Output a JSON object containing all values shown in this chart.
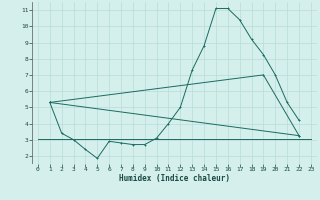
{
  "xlabel": "Humidex (Indice chaleur)",
  "bg_color": "#d4efec",
  "grid_color": "#b8ddd9",
  "line_color": "#1a6b60",
  "xlim": [
    -0.5,
    23.5
  ],
  "ylim": [
    1.5,
    11.5
  ],
  "xticks": [
    0,
    1,
    2,
    3,
    4,
    5,
    6,
    7,
    8,
    9,
    10,
    11,
    12,
    13,
    14,
    15,
    16,
    17,
    18,
    19,
    20,
    21,
    22,
    23
  ],
  "yticks": [
    2,
    3,
    4,
    5,
    6,
    7,
    8,
    9,
    10,
    11
  ],
  "line1_x": [
    1,
    2,
    3,
    4,
    5,
    6,
    7,
    8,
    9,
    10,
    11,
    12,
    13,
    14,
    15,
    16,
    17,
    18,
    19,
    20,
    21,
    22
  ],
  "line1_y": [
    5.3,
    3.4,
    3.0,
    2.4,
    1.85,
    2.9,
    2.8,
    2.7,
    2.7,
    3.1,
    4.0,
    5.0,
    7.3,
    8.8,
    11.1,
    11.1,
    10.4,
    9.2,
    8.25,
    7.0,
    5.3,
    4.2
  ],
  "line2_x": [
    1,
    22
  ],
  "line2_y": [
    5.3,
    3.25
  ],
  "line3_x": [
    1,
    19,
    22
  ],
  "line3_y": [
    5.3,
    7.0,
    3.25
  ],
  "line4_x": [
    0,
    23
  ],
  "line4_y": [
    3.05,
    3.05
  ]
}
